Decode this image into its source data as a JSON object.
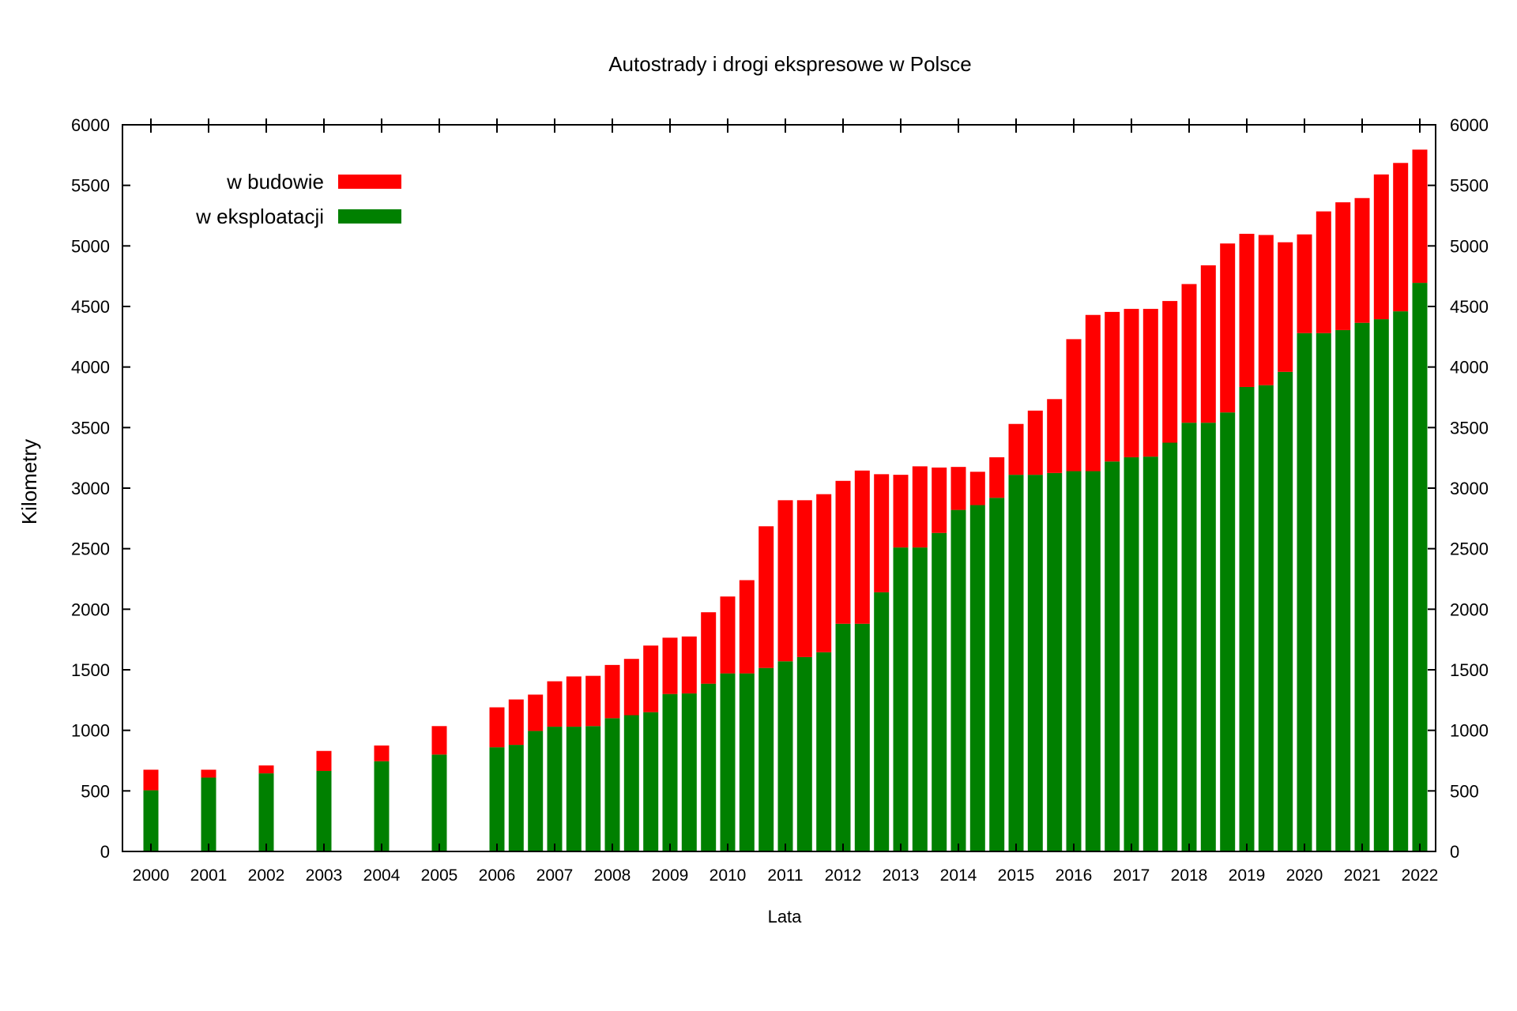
{
  "chart_data": {
    "type": "bar",
    "stacked": true,
    "title": "Autostrady i drogi ekspresowe w Polsce",
    "xlabel": "Lata",
    "ylabel": "Kilometry",
    "ylim": [
      0,
      6000
    ],
    "yticks": [
      "0",
      "500",
      "1000",
      "1500",
      "2000",
      "2500",
      "3000",
      "3500",
      "4000",
      "4500",
      "5000",
      "5500",
      "6000"
    ],
    "xticks": [
      "2000",
      "2001",
      "2002",
      "2003",
      "2004",
      "2005",
      "2006",
      "2007",
      "2008",
      "2009",
      "2010",
      "2011",
      "2012",
      "2013",
      "2014",
      "2015",
      "2016",
      "2017",
      "2018",
      "2019",
      "2020",
      "2021",
      "2022"
    ],
    "xlim": [
      2000,
      2022
    ],
    "legend_position": "top-left",
    "colors": {
      "in_construction": "#ff0000",
      "in_operation": "#008000"
    },
    "x": [
      2000,
      2001,
      2002,
      2003,
      2004,
      2005,
      2006,
      2006.333,
      2006.667,
      2007,
      2007.333,
      2007.667,
      2008,
      2008.333,
      2008.667,
      2009,
      2009.333,
      2009.667,
      2010,
      2010.333,
      2010.667,
      2011,
      2011.333,
      2011.667,
      2012,
      2012.333,
      2012.667,
      2013,
      2013.333,
      2013.667,
      2014,
      2014.333,
      2014.667,
      2015,
      2015.333,
      2015.667,
      2016,
      2016.333,
      2016.667,
      2017,
      2017.333,
      2017.667,
      2018,
      2018.333,
      2018.667,
      2019,
      2019.333,
      2019.667,
      2020,
      2020.333,
      2020.667,
      2021,
      2021.333,
      2021.667,
      2022
    ],
    "series": [
      {
        "name": "w eksploatacji",
        "values": [
          505,
          610,
          645,
          665,
          745,
          800,
          860,
          880,
          995,
          1030,
          1030,
          1035,
          1100,
          1125,
          1150,
          1300,
          1305,
          1385,
          1470,
          1470,
          1515,
          1570,
          1605,
          1645,
          1880,
          1880,
          2140,
          2510,
          2510,
          2630,
          2820,
          2860,
          2920,
          3110,
          3110,
          3125,
          3140,
          3140,
          3220,
          3255,
          3260,
          3375,
          3540,
          3540,
          3625,
          3835,
          3850,
          3960,
          4280,
          4280,
          4305,
          4365,
          4395,
          4460,
          4695
        ]
      },
      {
        "name": "w budowie",
        "values": [
          170,
          65,
          65,
          165,
          130,
          235,
          330,
          375,
          300,
          375,
          415,
          415,
          440,
          465,
          550,
          465,
          470,
          590,
          635,
          770,
          1170,
          1330,
          1295,
          1305,
          1180,
          1265,
          975,
          600,
          670,
          540,
          355,
          275,
          335,
          420,
          530,
          610,
          1090,
          1290,
          1235,
          1225,
          1220,
          1170,
          1145,
          1300,
          1395,
          1265,
          1240,
          1070,
          815,
          1005,
          1055,
          1030,
          1195,
          1225,
          1100
        ]
      }
    ]
  }
}
